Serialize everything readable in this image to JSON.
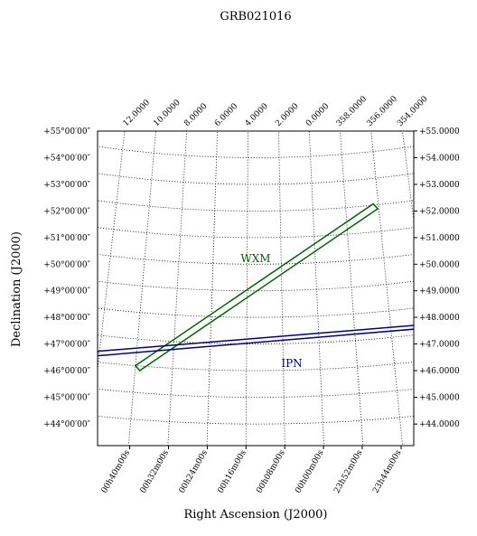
{
  "chart_data": {
    "type": "sky",
    "title": "GRB021016",
    "xlabel": "Right Ascension (J2000)",
    "ylabel": "Declination (J2000)",
    "center": [
      3.5,
      49.5
    ],
    "yticks": [
      {
        "value": 55,
        "label": "+55°00′00″"
      },
      {
        "value": 54,
        "label": "+54°00′00″"
      },
      {
        "value": 53,
        "label": "+53°00′00″"
      },
      {
        "value": 52,
        "label": "+52°00′00″"
      },
      {
        "value": 51,
        "label": "+51°00′00″"
      },
      {
        "value": 50,
        "label": "+50°00′00″"
      },
      {
        "value": 49,
        "label": "+49°00′00″"
      },
      {
        "value": 48,
        "label": "+48°00′00″"
      },
      {
        "value": 47,
        "label": "+47°00′00″"
      },
      {
        "value": 46,
        "label": "+46°00′00″"
      },
      {
        "value": 45,
        "label": "+45°00′00″"
      },
      {
        "value": 44,
        "label": "+44°00′00″"
      }
    ],
    "y2ticks": [
      {
        "value": 55,
        "label": "+55.0000"
      },
      {
        "value": 54,
        "label": "+54.0000"
      },
      {
        "value": 53,
        "label": "+53.0000"
      },
      {
        "value": 52,
        "label": "+52.0000"
      },
      {
        "value": 51,
        "label": "+51.0000"
      },
      {
        "value": 50,
        "label": "+50.0000"
      },
      {
        "value": 49,
        "label": "+49.0000"
      },
      {
        "value": 48,
        "label": "+48.0000"
      },
      {
        "value": 47,
        "label": "+47.0000"
      },
      {
        "value": 46,
        "label": "+46.0000"
      },
      {
        "value": 45,
        "label": "+45.0000"
      },
      {
        "value": 44,
        "label": "+44.0000"
      }
    ],
    "xticks": [
      {
        "value": 12,
        "label": "12.0000"
      },
      {
        "value": 10,
        "label": "10.0000"
      },
      {
        "value": 8,
        "label": "8.0000"
      },
      {
        "value": 6,
        "label": "6.0000"
      },
      {
        "value": 4,
        "label": "4.0000"
      },
      {
        "value": 2,
        "label": "2.0000"
      },
      {
        "value": 0,
        "label": "0.0000"
      },
      {
        "value": 358,
        "label": "358.0000"
      },
      {
        "value": 356,
        "label": "356.0000"
      },
      {
        "value": 354,
        "label": "354.0000"
      }
    ],
    "x2ticks": [
      {
        "value": 10,
        "label": "00h40m00s"
      },
      {
        "value": 8,
        "label": "00h32m00s"
      },
      {
        "value": 6,
        "label": "00h24m00s"
      },
      {
        "value": 4,
        "label": "00h16m00s"
      },
      {
        "value": 2,
        "label": "00h08m00s"
      },
      {
        "value": 0,
        "label": "00h00m00s"
      },
      {
        "value": 358,
        "label": "23h52m00s"
      },
      {
        "value": 356,
        "label": "23h44m00s"
      }
    ],
    "regions": [
      {
        "name": "WXM",
        "color": "#006400",
        "ra": [
          10.0,
          9.75,
          356.07,
          356.31
        ],
        "dec": [
          46.0,
          45.83,
          51.85,
          52.05
        ]
      },
      {
        "name": "IPN",
        "color": "#000080",
        "ra": [
          12.1,
          354.7,
          354.7,
          12.1
        ],
        "dec": [
          46.4,
          47.36,
          47.22,
          46.23
        ]
      }
    ]
  }
}
